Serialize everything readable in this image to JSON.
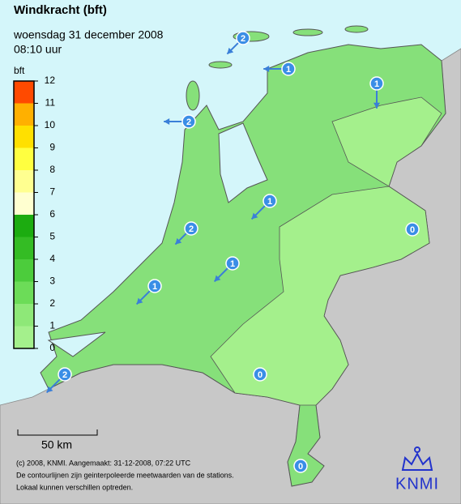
{
  "header": {
    "title": "Windkracht (bft)",
    "date": "woensdag 31 december 2008",
    "time": "08:10 uur"
  },
  "legend": {
    "title": "bft",
    "levels": [
      0,
      1,
      2,
      3,
      4,
      5,
      6,
      7,
      8,
      9,
      10,
      11,
      12
    ],
    "colors": [
      "#a4f08c",
      "#8ee878",
      "#6cdc58",
      "#4ccc3c",
      "#34bc24",
      "#1cac10",
      "#ffffd0",
      "#ffff90",
      "#ffff40",
      "#ffe000",
      "#ffb000",
      "#ff4a00"
    ]
  },
  "stations": [
    2,
    1,
    1,
    2,
    1,
    2,
    1,
    1,
    0,
    2,
    0,
    0
  ],
  "scale_bar": {
    "label": "50 km"
  },
  "footer": {
    "lines": [
      "(c) 2008, KNMI. Aangemaakt: 31-12-2008, 07:22 UTC",
      "De contourlijnen zijn geinterpoleerde meetwaarden van de stations.",
      "Lokaal kunnen verschillen optreden."
    ]
  },
  "logo": {
    "text": "KNMI"
  }
}
